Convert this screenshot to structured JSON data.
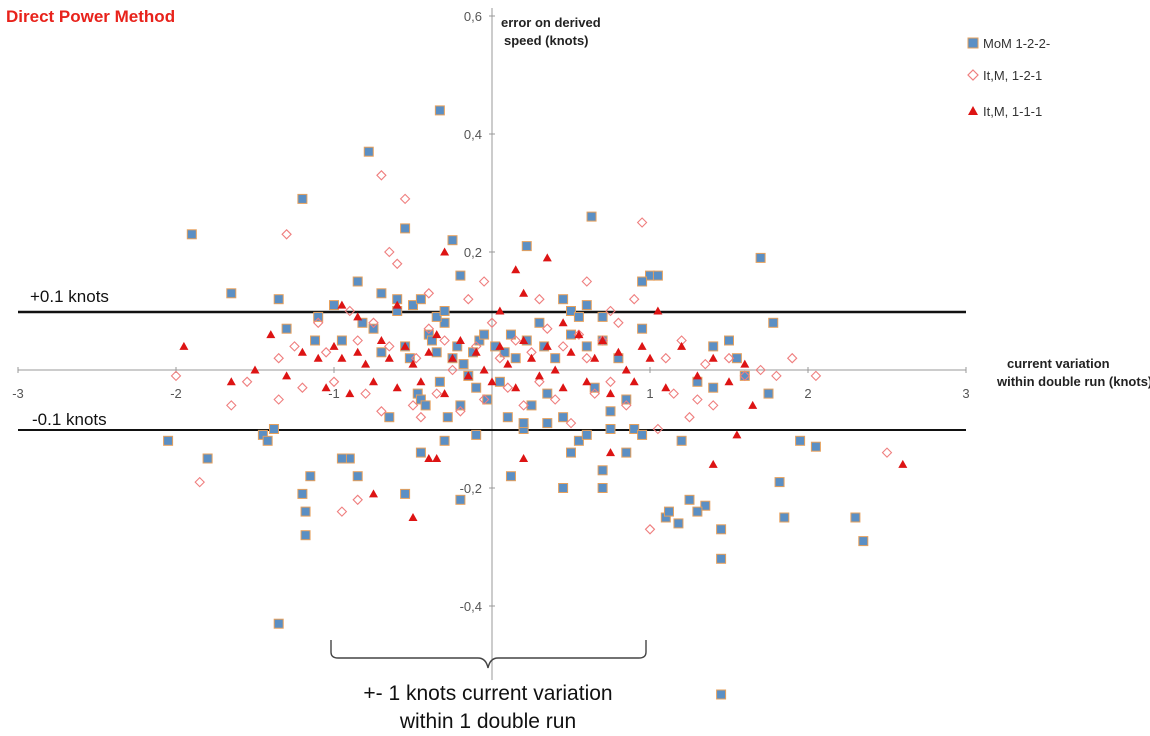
{
  "colors": {
    "title": "#e8221b",
    "square_fill": "#5b8fc4",
    "square_stroke": "#e6a05c",
    "diamond_stroke": "#ef7f7f",
    "triangle_fill": "#dd1414",
    "axis": "#999999",
    "threshold": "#111111"
  },
  "chart_data": {
    "type": "scatter",
    "title": "Direct Power Method",
    "ylabel": "error on derived speed (knots)",
    "xlabel": "current variation within double run (knots)",
    "xlim": [
      -3,
      3
    ],
    "ylim": [
      -0.5,
      0.6
    ],
    "x_ticks": [
      "-3",
      "-2",
      "-1",
      "0",
      "1",
      "2",
      "3"
    ],
    "y_ticks": [
      "0,6",
      "0,4",
      "0,2",
      "-0,2",
      "-0,4"
    ],
    "thresholds": [
      0.1,
      -0.1
    ],
    "grid": false,
    "legend_position": "top-right",
    "series": [
      {
        "name": "MoM 1-2-2-",
        "marker": "square",
        "points": [
          [
            -2.05,
            -0.12
          ],
          [
            -1.8,
            -0.15
          ],
          [
            -1.9,
            0.23
          ],
          [
            -1.35,
            -0.43
          ],
          [
            -1.38,
            -0.1
          ],
          [
            -1.45,
            -0.11
          ],
          [
            -1.42,
            -0.12
          ],
          [
            -1.65,
            0.13
          ],
          [
            -1.2,
            0.29
          ],
          [
            -1.15,
            -0.18
          ],
          [
            -1.3,
            0.07
          ],
          [
            -1.12,
            0.05
          ],
          [
            -1.18,
            -0.24
          ],
          [
            -1.18,
            -0.28
          ],
          [
            -1.2,
            -0.21
          ],
          [
            -1.1,
            0.09
          ],
          [
            -1.0,
            0.11
          ],
          [
            -0.95,
            0.05
          ],
          [
            -0.82,
            0.08
          ],
          [
            -0.75,
            0.07
          ],
          [
            -0.7,
            0.03
          ],
          [
            -0.65,
            -0.08
          ],
          [
            -0.6,
            0.1
          ],
          [
            -0.55,
            0.04
          ],
          [
            -0.52,
            0.02
          ],
          [
            -0.47,
            -0.04
          ],
          [
            -0.45,
            -0.05
          ],
          [
            -0.42,
            -0.06
          ],
          [
            -0.4,
            0.06
          ],
          [
            -0.38,
            0.05
          ],
          [
            -0.35,
            0.03
          ],
          [
            -0.33,
            -0.02
          ],
          [
            -0.3,
            0.08
          ],
          [
            -0.28,
            -0.08
          ],
          [
            -0.25,
            0.02
          ],
          [
            -0.22,
            0.04
          ],
          [
            -0.2,
            -0.06
          ],
          [
            -0.18,
            0.01
          ],
          [
            -0.15,
            -0.01
          ],
          [
            -0.12,
            0.03
          ],
          [
            -0.1,
            -0.03
          ],
          [
            -0.08,
            0.05
          ],
          [
            -0.05,
            0.06
          ],
          [
            -0.03,
            -0.05
          ],
          [
            0.02,
            0.04
          ],
          [
            0.05,
            -0.02
          ],
          [
            0.08,
            0.03
          ],
          [
            0.1,
            -0.08
          ],
          [
            0.12,
            0.06
          ],
          [
            0.15,
            0.02
          ],
          [
            0.2,
            -0.1
          ],
          [
            0.22,
            0.05
          ],
          [
            0.25,
            -0.06
          ],
          [
            0.3,
            0.08
          ],
          [
            0.33,
            0.04
          ],
          [
            0.35,
            -0.04
          ],
          [
            0.4,
            0.02
          ],
          [
            0.45,
            -0.08
          ],
          [
            0.5,
            0.06
          ],
          [
            0.55,
            -0.12
          ],
          [
            0.6,
            0.04
          ],
          [
            0.65,
            -0.03
          ],
          [
            0.7,
            0.05
          ],
          [
            0.75,
            -0.07
          ],
          [
            0.8,
            0.02
          ],
          [
            0.85,
            -0.05
          ],
          [
            0.9,
            -0.1
          ],
          [
            0.95,
            0.07
          ],
          [
            -0.78,
            0.37
          ],
          [
            -0.33,
            0.44
          ],
          [
            0.63,
            0.26
          ],
          [
            -0.85,
            -0.18
          ],
          [
            -0.55,
            0.24
          ],
          [
            -0.9,
            -0.15
          ],
          [
            -0.25,
            0.22
          ],
          [
            0.22,
            0.21
          ],
          [
            -0.95,
            -0.15
          ],
          [
            -1.35,
            0.12
          ],
          [
            -0.2,
            0.16
          ],
          [
            -0.85,
            0.15
          ],
          [
            -0.7,
            0.13
          ],
          [
            -0.6,
            0.12
          ],
          [
            -0.5,
            0.11
          ],
          [
            -0.45,
            0.12
          ],
          [
            -0.35,
            0.09
          ],
          [
            -0.3,
            0.1
          ],
          [
            0.45,
            0.12
          ],
          [
            0.5,
            0.1
          ],
          [
            0.55,
            0.09
          ],
          [
            0.6,
            0.11
          ],
          [
            0.7,
            0.09
          ],
          [
            1.0,
            0.16
          ],
          [
            1.05,
            0.16
          ],
          [
            0.95,
            0.15
          ],
          [
            1.4,
            0.04
          ],
          [
            1.55,
            0.02
          ],
          [
            1.6,
            -0.01
          ],
          [
            1.75,
            -0.04
          ],
          [
            1.7,
            0.19
          ],
          [
            1.78,
            0.08
          ],
          [
            1.5,
            0.05
          ],
          [
            2.05,
            -0.13
          ],
          [
            1.82,
            -0.19
          ],
          [
            1.85,
            -0.25
          ],
          [
            2.3,
            -0.25
          ],
          [
            2.35,
            -0.29
          ],
          [
            1.95,
            -0.12
          ],
          [
            1.45,
            -0.27
          ],
          [
            1.45,
            -0.32
          ],
          [
            1.35,
            -0.23
          ],
          [
            1.3,
            -0.24
          ],
          [
            1.25,
            -0.22
          ],
          [
            1.18,
            -0.26
          ],
          [
            1.1,
            -0.25
          ],
          [
            1.12,
            -0.24
          ],
          [
            1.45,
            -0.55
          ],
          [
            1.2,
            -0.12
          ],
          [
            1.4,
            -0.03
          ],
          [
            1.3,
            -0.02
          ],
          [
            0.95,
            -0.11
          ],
          [
            0.85,
            -0.14
          ],
          [
            0.7,
            -0.17
          ],
          [
            0.7,
            -0.2
          ],
          [
            0.45,
            -0.2
          ],
          [
            0.12,
            -0.18
          ],
          [
            -0.55,
            -0.21
          ],
          [
            -0.2,
            -0.22
          ],
          [
            -0.45,
            -0.14
          ],
          [
            -0.3,
            -0.12
          ],
          [
            -0.1,
            -0.11
          ],
          [
            0.2,
            -0.09
          ],
          [
            0.35,
            -0.09
          ],
          [
            0.5,
            -0.14
          ],
          [
            0.6,
            -0.11
          ],
          [
            0.75,
            -0.1
          ]
        ]
      },
      {
        "name": "It,M, 1-2-1",
        "marker": "diamond",
        "points": [
          [
            -2.0,
            -0.01
          ],
          [
            -1.85,
            -0.19
          ],
          [
            -1.65,
            -0.06
          ],
          [
            -1.55,
            -0.02
          ],
          [
            -1.35,
            0.02
          ],
          [
            -1.35,
            -0.05
          ],
          [
            -1.25,
            0.04
          ],
          [
            -1.2,
            -0.03
          ],
          [
            -1.1,
            0.08
          ],
          [
            -1.05,
            0.03
          ],
          [
            -1.0,
            -0.02
          ],
          [
            -0.9,
            0.1
          ],
          [
            -0.85,
            0.05
          ],
          [
            -0.8,
            -0.04
          ],
          [
            -0.75,
            0.08
          ],
          [
            -0.7,
            -0.07
          ],
          [
            -0.65,
            0.04
          ],
          [
            -0.6,
            0.18
          ],
          [
            -0.55,
            0.29
          ],
          [
            -0.5,
            -0.06
          ],
          [
            -0.48,
            0.02
          ],
          [
            -0.45,
            -0.08
          ],
          [
            -0.4,
            0.07
          ],
          [
            -0.35,
            -0.04
          ],
          [
            -0.3,
            0.05
          ],
          [
            -0.25,
            0.0
          ],
          [
            -0.2,
            -0.07
          ],
          [
            -0.15,
            0.12
          ],
          [
            -0.1,
            0.04
          ],
          [
            -0.05,
            -0.05
          ],
          [
            0.0,
            0.08
          ],
          [
            0.05,
            0.02
          ],
          [
            0.1,
            -0.03
          ],
          [
            0.15,
            0.05
          ],
          [
            0.2,
            -0.06
          ],
          [
            0.25,
            0.03
          ],
          [
            0.3,
            -0.02
          ],
          [
            0.35,
            0.07
          ],
          [
            0.4,
            -0.05
          ],
          [
            0.45,
            0.04
          ],
          [
            0.5,
            -0.09
          ],
          [
            0.55,
            0.06
          ],
          [
            0.6,
            0.02
          ],
          [
            0.65,
            -0.04
          ],
          [
            0.7,
            0.05
          ],
          [
            0.75,
            -0.02
          ],
          [
            0.8,
            0.08
          ],
          [
            0.85,
            -0.06
          ],
          [
            0.9,
            0.12
          ],
          [
            0.95,
            0.25
          ],
          [
            1.0,
            -0.27
          ],
          [
            1.05,
            -0.1
          ],
          [
            1.1,
            0.02
          ],
          [
            1.15,
            -0.04
          ],
          [
            1.2,
            0.05
          ],
          [
            1.25,
            -0.08
          ],
          [
            1.3,
            -0.05
          ],
          [
            1.35,
            0.01
          ],
          [
            1.4,
            -0.06
          ],
          [
            1.5,
            0.02
          ],
          [
            1.6,
            -0.01
          ],
          [
            1.7,
            0.0
          ],
          [
            1.8,
            -0.01
          ],
          [
            1.9,
            0.02
          ],
          [
            2.05,
            -0.01
          ],
          [
            2.5,
            -0.14
          ],
          [
            -1.3,
            0.23
          ],
          [
            -0.7,
            0.33
          ],
          [
            -0.65,
            0.2
          ],
          [
            -0.4,
            0.13
          ],
          [
            0.3,
            0.12
          ],
          [
            0.6,
            0.15
          ],
          [
            -0.95,
            -0.24
          ],
          [
            -0.85,
            -0.22
          ],
          [
            0.75,
            0.1
          ],
          [
            -0.05,
            0.15
          ]
        ]
      },
      {
        "name": "It,M, 1-1-1",
        "marker": "triangle",
        "points": [
          [
            -1.95,
            0.04
          ],
          [
            -1.65,
            -0.02
          ],
          [
            -1.5,
            0.0
          ],
          [
            -1.4,
            0.06
          ],
          [
            -1.3,
            -0.01
          ],
          [
            -1.2,
            0.03
          ],
          [
            -1.1,
            0.02
          ],
          [
            -1.05,
            -0.03
          ],
          [
            -1.0,
            0.04
          ],
          [
            -0.95,
            0.02
          ],
          [
            -0.9,
            -0.04
          ],
          [
            -0.85,
            0.03
          ],
          [
            -0.8,
            0.01
          ],
          [
            -0.75,
            -0.02
          ],
          [
            -0.7,
            0.05
          ],
          [
            -0.65,
            0.02
          ],
          [
            -0.6,
            -0.03
          ],
          [
            -0.55,
            0.04
          ],
          [
            -0.5,
            0.01
          ],
          [
            -0.45,
            -0.02
          ],
          [
            -0.4,
            0.03
          ],
          [
            -0.35,
            0.06
          ],
          [
            -0.3,
            -0.04
          ],
          [
            -0.25,
            0.02
          ],
          [
            -0.2,
            0.05
          ],
          [
            -0.15,
            -0.01
          ],
          [
            -0.1,
            0.03
          ],
          [
            -0.05,
            0.0
          ],
          [
            0.0,
            -0.02
          ],
          [
            0.05,
            0.04
          ],
          [
            0.1,
            0.01
          ],
          [
            0.15,
            -0.03
          ],
          [
            0.2,
            0.05
          ],
          [
            0.25,
            0.02
          ],
          [
            0.3,
            -0.01
          ],
          [
            0.35,
            0.04
          ],
          [
            0.4,
            0.0
          ],
          [
            0.45,
            -0.03
          ],
          [
            0.5,
            0.03
          ],
          [
            0.55,
            0.06
          ],
          [
            0.6,
            -0.02
          ],
          [
            0.65,
            0.02
          ],
          [
            0.7,
            0.05
          ],
          [
            0.75,
            -0.04
          ],
          [
            0.8,
            0.03
          ],
          [
            0.85,
            0.0
          ],
          [
            0.9,
            -0.02
          ],
          [
            0.95,
            0.04
          ],
          [
            1.0,
            0.02
          ],
          [
            1.1,
            -0.03
          ],
          [
            1.2,
            0.04
          ],
          [
            1.3,
            -0.01
          ],
          [
            1.4,
            0.02
          ],
          [
            1.5,
            -0.02
          ],
          [
            1.6,
            0.01
          ],
          [
            -0.4,
            -0.15
          ],
          [
            -0.75,
            -0.21
          ],
          [
            -0.35,
            -0.15
          ],
          [
            0.2,
            -0.15
          ],
          [
            0.35,
            0.19
          ],
          [
            -0.5,
            -0.25
          ],
          [
            0.2,
            0.13
          ],
          [
            -0.3,
            0.2
          ],
          [
            0.75,
            -0.14
          ],
          [
            0.15,
            0.17
          ],
          [
            -0.6,
            0.11
          ],
          [
            1.4,
            -0.16
          ],
          [
            1.65,
            -0.06
          ],
          [
            2.6,
            -0.16
          ],
          [
            1.55,
            -0.11
          ],
          [
            -0.95,
            0.11
          ],
          [
            -0.85,
            0.09
          ],
          [
            0.05,
            0.1
          ],
          [
            0.45,
            0.08
          ],
          [
            1.05,
            0.1
          ]
        ]
      }
    ],
    "annotations": {
      "plus_label": "+0.1 knots",
      "minus_label": "-0.1 knots",
      "brace_line1": "+- 1 knots current variation",
      "brace_line2": "within 1 double run"
    }
  },
  "labels": {
    "ylabel_line1": "error on derived",
    "ylabel_line2": "speed (knots)",
    "xlabel_line1": "current variation",
    "xlabel_line2": "within double run (knots)"
  }
}
